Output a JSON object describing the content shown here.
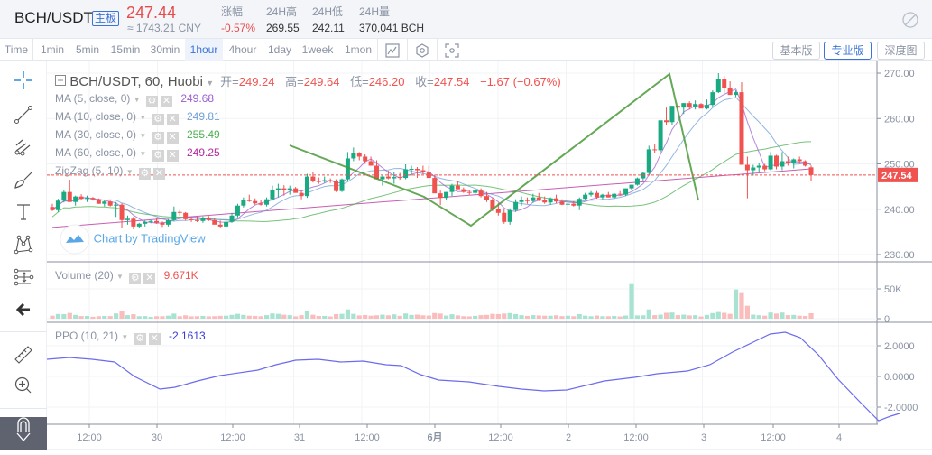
{
  "header": {
    "symbol": "BCH/USDT",
    "board_badge": "主板",
    "last_price": "247.44",
    "cny_price": "≈ 1743.21 CNY",
    "stats": [
      {
        "label": "涨幅",
        "value": "-0.57%",
        "color": "#e74c4c"
      },
      {
        "label": "24H高",
        "value": "269.55",
        "color": "#333333"
      },
      {
        "label": "24H低",
        "value": "242.11",
        "color": "#333333"
      },
      {
        "label": "24H量",
        "value": "370,041 BCH",
        "color": "#333333"
      }
    ]
  },
  "toolbar": {
    "timeframes": [
      "Time",
      "1min",
      "5min",
      "15min",
      "30min",
      "1hour",
      "4hour",
      "1day",
      "1week",
      "1mon"
    ],
    "active_timeframe": "1hour",
    "icons": [
      "indicator-icon",
      "settings-hexagon-icon",
      "fullscreen-icon"
    ],
    "view_buttons": [
      "基本版",
      "专业版",
      "深度图"
    ],
    "active_view": "专业版"
  },
  "drawing_tools": [
    "crosshair",
    "trend-line",
    "pitchfork",
    "brush",
    "text",
    "pattern",
    "prediction",
    "back-arrow",
    "ruler",
    "zoom-in",
    "magnet"
  ],
  "main_pane": {
    "title": "BCH/USDT, 60, Huobi",
    "ohlc": {
      "open_label": "开=",
      "open": "249.24",
      "high_label": "高=",
      "high": "249.64",
      "low_label": "低=",
      "low": "246.20",
      "close_label": "收=",
      "close": "247.54",
      "change": "−1.67 (−0.67%)"
    },
    "indicators": [
      {
        "name": "MA (5, close, 0)",
        "value": "249.68",
        "color": "#9c5fd1"
      },
      {
        "name": "MA (10, close, 0)",
        "value": "249.81",
        "color": "#6e9fd6"
      },
      {
        "name": "MA (30, close, 0)",
        "value": "255.49",
        "color": "#4caf50"
      },
      {
        "name": "MA (60, close, 0)",
        "value": "249.25",
        "color": "#b5299a"
      },
      {
        "name": "ZigZag (5, 10)",
        "value": "",
        "color": "#4a9a3a"
      }
    ],
    "watermark": "Chart by TradingView",
    "price_axis": [
      "270.00",
      "260.00",
      "250.00",
      "240.00",
      "230.00"
    ],
    "current_price_label": "247.54"
  },
  "volume_pane": {
    "title": "Volume (20)",
    "value": "9.671K",
    "axis": [
      "50K",
      "0"
    ]
  },
  "ppo_pane": {
    "title": "PPO (10, 21)",
    "value": "-2.1613",
    "axis": [
      "2.0000",
      "0.0000",
      "-2.0000"
    ]
  },
  "time_axis": [
    "12:00",
    "30",
    "12:00",
    "31",
    "12:00",
    "6月",
    "12:00",
    "2",
    "12:00",
    "3",
    "12:00",
    "4"
  ],
  "colors": {
    "up": "#1aaa82",
    "down": "#f0524f",
    "accent": "#3b74d6"
  },
  "chart_data": {
    "type": "candlestick",
    "title": "BCH/USDT, 60, Huobi",
    "ylim": [
      228,
      272
    ],
    "candles": [
      [
        240.5,
        241.2,
        239.6,
        239.8
      ],
      [
        239.8,
        242.3,
        239.4,
        241.9
      ],
      [
        241.9,
        244.3,
        241.5,
        243.8
      ],
      [
        243.8,
        246.5,
        242.8,
        241.6
      ],
      [
        241.6,
        243.0,
        240.8,
        242.8
      ],
      [
        242.8,
        243.3,
        242.0,
        242.3
      ],
      [
        242.3,
        243.0,
        241.6,
        242.5
      ],
      [
        242.5,
        242.7,
        241.9,
        242.2
      ],
      [
        242.2,
        242.4,
        241.2,
        241.2
      ],
      [
        241.2,
        242.0,
        240.6,
        241.7
      ],
      [
        241.7,
        241.9,
        240.6,
        240.8
      ],
      [
        240.8,
        241.6,
        238.3,
        241.0
      ],
      [
        241.0,
        241.3,
        235.8,
        237.6
      ],
      [
        237.6,
        238.6,
        236.6,
        237.9
      ],
      [
        237.9,
        238.3,
        235.6,
        236.2
      ],
      [
        236.2,
        237.0,
        235.8,
        236.8
      ],
      [
        236.8,
        237.5,
        236.2,
        237.2
      ],
      [
        237.2,
        237.6,
        236.9,
        237.4
      ],
      [
        237.4,
        238.0,
        236.8,
        237.0
      ],
      [
        237.0,
        237.3,
        236.1,
        236.6
      ],
      [
        236.6,
        237.8,
        236.2,
        237.6
      ],
      [
        237.6,
        240.6,
        237.4,
        239.4
      ],
      [
        239.4,
        239.8,
        238.6,
        239.2
      ],
      [
        239.2,
        239.4,
        237.5,
        237.8
      ],
      [
        237.8,
        238.3,
        237.2,
        237.6
      ],
      [
        237.6,
        238.4,
        237.2,
        237.4
      ],
      [
        237.4,
        238.4,
        237.0,
        238.0
      ],
      [
        238.0,
        238.5,
        237.4,
        237.6
      ],
      [
        237.6,
        238.1,
        236.9,
        236.6
      ],
      [
        236.6,
        237.5,
        236.0,
        236.2
      ],
      [
        236.2,
        237.4,
        235.8,
        237.2
      ],
      [
        237.2,
        239.2,
        237.0,
        238.6
      ],
      [
        238.6,
        241.2,
        238.2,
        240.8
      ],
      [
        240.8,
        242.6,
        240.4,
        242.0
      ],
      [
        242.0,
        243.2,
        241.6,
        241.8
      ],
      [
        241.8,
        242.4,
        241.0,
        241.3
      ],
      [
        241.3,
        242.0,
        240.8,
        241.0
      ],
      [
        241.0,
        242.6,
        240.6,
        242.2
      ],
      [
        242.2,
        245.2,
        241.9,
        244.2
      ],
      [
        244.2,
        245.6,
        242.6,
        244.6
      ],
      [
        244.6,
        245.3,
        243.0,
        244.2
      ],
      [
        244.2,
        245.2,
        243.2,
        244.6
      ],
      [
        244.6,
        244.9,
        243.8,
        243.6
      ],
      [
        243.6,
        244.2,
        242.2,
        242.9
      ],
      [
        242.9,
        247.8,
        242.5,
        247.2
      ],
      [
        247.2,
        248.2,
        245.9,
        246.2
      ],
      [
        246.2,
        247.0,
        245.6,
        246.1
      ],
      [
        246.1,
        247.2,
        245.8,
        246.4
      ],
      [
        246.4,
        246.8,
        245.8,
        246.2
      ],
      [
        246.2,
        246.6,
        243.8,
        244.0
      ],
      [
        244.0,
        246.8,
        243.8,
        246.6
      ],
      [
        246.6,
        252.6,
        246.2,
        251.2
      ],
      [
        251.2,
        253.6,
        250.6,
        252.4
      ],
      [
        252.4,
        252.6,
        250.8,
        251.6
      ],
      [
        251.6,
        252.1,
        250.0,
        250.6
      ],
      [
        250.6,
        251.6,
        250.0,
        249.6
      ],
      [
        249.6,
        250.8,
        248.9,
        246.6
      ],
      [
        246.6,
        247.6,
        245.2,
        247.2
      ],
      [
        247.2,
        248.5,
        246.6,
        246.8
      ],
      [
        246.8,
        248.2,
        245.6,
        247.1
      ],
      [
        247.1,
        248.0,
        246.5,
        246.9
      ],
      [
        246.9,
        249.9,
        246.6,
        248.8
      ],
      [
        248.8,
        249.6,
        247.4,
        248.9
      ],
      [
        248.9,
        249.3,
        246.9,
        248.6
      ],
      [
        248.6,
        249.6,
        247.7,
        248.1
      ],
      [
        248.1,
        249.6,
        247.9,
        246.9
      ],
      [
        246.9,
        247.6,
        244.0,
        243.5
      ],
      [
        243.5,
        244.1,
        240.9,
        242.5
      ],
      [
        242.5,
        243.8,
        242.1,
        243.8
      ],
      [
        243.8,
        245.6,
        242.9,
        245.2
      ],
      [
        245.2,
        246.2,
        244.4,
        244.4
      ],
      [
        244.4,
        244.8,
        243.6,
        243.8
      ],
      [
        243.8,
        244.3,
        243.2,
        243.6
      ],
      [
        243.6,
        244.6,
        243.1,
        244.1
      ],
      [
        244.1,
        244.6,
        242.6,
        242.9
      ],
      [
        242.9,
        243.8,
        241.6,
        242.0
      ],
      [
        242.0,
        242.6,
        239.6,
        240.0
      ],
      [
        240.0,
        241.4,
        238.6,
        239.2
      ],
      [
        239.2,
        240.0,
        236.8,
        237.2
      ],
      [
        237.2,
        240.2,
        236.6,
        239.8
      ],
      [
        239.8,
        242.2,
        239.4,
        241.6
      ],
      [
        241.6,
        242.8,
        240.8,
        242.0
      ],
      [
        242.0,
        242.6,
        241.2,
        241.8
      ],
      [
        241.8,
        243.4,
        241.4,
        242.6
      ],
      [
        242.6,
        243.6,
        241.8,
        242.1
      ],
      [
        242.1,
        242.8,
        241.2,
        241.5
      ],
      [
        241.5,
        242.6,
        241.0,
        242.4
      ],
      [
        242.4,
        243.2,
        241.3,
        241.7
      ],
      [
        241.7,
        242.2,
        240.9,
        241.0
      ],
      [
        241.0,
        241.6,
        240.0,
        241.2
      ],
      [
        241.2,
        241.8,
        240.6,
        240.8
      ],
      [
        240.8,
        242.6,
        239.8,
        242.3
      ],
      [
        242.3,
        243.6,
        242.0,
        243.2
      ],
      [
        243.2,
        244.0,
        242.8,
        243.6
      ],
      [
        243.6,
        244.0,
        242.3,
        242.6
      ],
      [
        242.6,
        243.4,
        242.2,
        243.2
      ],
      [
        243.2,
        243.8,
        242.6,
        242.6
      ],
      [
        242.6,
        243.6,
        242.2,
        243.4
      ],
      [
        243.4,
        244.0,
        243.0,
        243.2
      ],
      [
        243.2,
        244.6,
        242.9,
        244.6
      ],
      [
        244.6,
        245.4,
        244.2,
        245.4
      ],
      [
        245.4,
        247.0,
        245.2,
        246.8
      ],
      [
        246.8,
        248.2,
        246.3,
        248.0
      ],
      [
        248.0,
        254.0,
        247.6,
        253.2
      ],
      [
        253.2,
        254.4,
        252.4,
        253.0
      ],
      [
        253.0,
        255.0,
        252.6,
        259.6
      ],
      [
        259.6,
        262.4,
        258.6,
        259.2
      ],
      [
        259.2,
        262.6,
        258.6,
        262.8
      ],
      [
        262.8,
        263.6,
        261.6,
        262.4
      ],
      [
        262.4,
        263.4,
        261.0,
        263.4
      ],
      [
        263.4,
        263.8,
        262.0,
        262.6
      ],
      [
        262.6,
        264.0,
        262.0,
        263.2
      ],
      [
        263.2,
        263.4,
        262.4,
        262.2
      ],
      [
        262.2,
        264.2,
        262.0,
        263.0
      ],
      [
        263.0,
        266.2,
        262.6,
        265.8
      ],
      [
        265.8,
        270.0,
        265.6,
        268.8
      ],
      [
        268.8,
        269.4,
        265.6,
        266.8
      ],
      [
        266.8,
        268.2,
        265.2,
        265.2
      ],
      [
        265.2,
        266.2,
        264.8,
        265.8
      ],
      [
        265.8,
        268.0,
        250.8,
        249.8
      ],
      [
        249.8,
        251.6,
        242.4,
        248.6
      ],
      [
        248.6,
        249.8,
        247.4,
        249.2
      ],
      [
        249.2,
        250.2,
        248.2,
        249.6
      ],
      [
        249.6,
        250.0,
        248.4,
        248.8
      ],
      [
        248.8,
        252.6,
        248.6,
        251.8
      ],
      [
        251.8,
        252.0,
        248.8,
        249.4
      ],
      [
        249.4,
        252.6,
        248.6,
        250.6
      ],
      [
        250.6,
        251.6,
        249.6,
        250.2
      ],
      [
        250.2,
        251.2,
        249.0,
        251.0
      ],
      [
        251.0,
        251.6,
        250.0,
        250.6
      ],
      [
        250.6,
        250.8,
        249.4,
        249.6
      ],
      [
        249.24,
        249.64,
        246.2,
        247.54
      ]
    ],
    "volume_max_axis": "50K",
    "ppo_range": [
      -2.6,
      3.2
    ]
  }
}
